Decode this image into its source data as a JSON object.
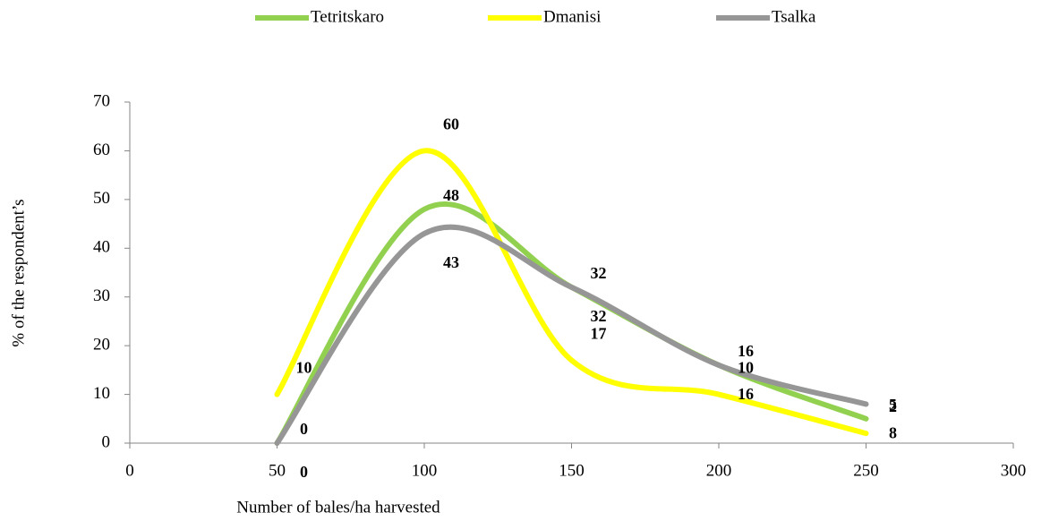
{
  "chart_data": {
    "type": "line",
    "xlabel": "Number of bales/ha harvested",
    "ylabel": "% of the respondent’s",
    "x": [
      50,
      100,
      150,
      200,
      250
    ],
    "series": [
      {
        "name": "Tetritskaro",
        "color": "#92d050",
        "values": [
          0,
          48,
          32,
          16,
          5
        ]
      },
      {
        "name": "Dmanisi",
        "color": "#ffff00",
        "values": [
          10,
          60,
          17,
          10,
          2
        ]
      },
      {
        "name": "Tsalka",
        "color": "#969696",
        "values": [
          0,
          43,
          32,
          16,
          8
        ]
      }
    ],
    "xlim": [
      0,
      300
    ],
    "xticks": [
      0,
      50,
      100,
      150,
      200,
      250,
      300
    ],
    "ylim": [
      0,
      70
    ],
    "yticks": [
      0,
      10,
      20,
      30,
      40,
      50,
      60,
      70
    ],
    "grid": false,
    "smooth": true,
    "legend": "top"
  }
}
